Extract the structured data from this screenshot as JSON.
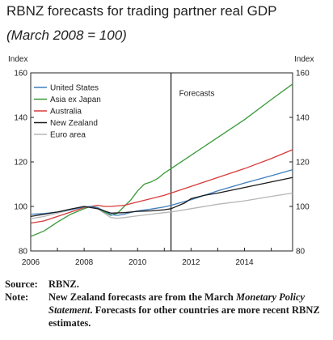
{
  "title": "RBNZ forecasts for trading partner real GDP",
  "subtitle": "(March 2008 = 100)",
  "chart_data": {
    "type": "line",
    "ylabel_left": "Index",
    "ylabel_right": "Index",
    "xlim": [
      2006,
      2015.8
    ],
    "ylim": [
      80,
      160
    ],
    "x_ticks": [
      2006,
      2008,
      2010,
      2012,
      2014
    ],
    "y_ticks": [
      80,
      100,
      120,
      140,
      160
    ],
    "annotation": {
      "text": "Forecasts",
      "x": 2011.25
    },
    "legend_position": "top-left",
    "series": [
      {
        "name": "United States",
        "color": "#3f7fbf",
        "points": [
          [
            2006,
            96.5
          ],
          [
            2006.5,
            96.8
          ],
          [
            2007,
            97.5
          ],
          [
            2007.5,
            98.5
          ],
          [
            2008,
            99.8
          ],
          [
            2008.25,
            100
          ],
          [
            2008.5,
            99.5
          ],
          [
            2008.75,
            98
          ],
          [
            2009,
            96.3
          ],
          [
            2009.25,
            96
          ],
          [
            2009.5,
            96.5
          ],
          [
            2009.75,
            97.3
          ],
          [
            2010,
            98
          ],
          [
            2010.5,
            98.8
          ],
          [
            2011,
            99.8
          ],
          [
            2011.25,
            100.5
          ],
          [
            2012,
            103
          ],
          [
            2013,
            107
          ],
          [
            2014,
            110.5
          ],
          [
            2015,
            113.8
          ],
          [
            2015.8,
            116.5
          ]
        ]
      },
      {
        "name": "Asia ex Japan",
        "color": "#3a9a3a",
        "points": [
          [
            2006,
            86.5
          ],
          [
            2006.5,
            89
          ],
          [
            2007,
            93
          ],
          [
            2007.5,
            96.5
          ],
          [
            2008,
            99
          ],
          [
            2008.25,
            100
          ],
          [
            2008.5,
            99.5
          ],
          [
            2008.75,
            97.5
          ],
          [
            2009,
            96
          ],
          [
            2009.25,
            97
          ],
          [
            2009.5,
            100
          ],
          [
            2009.75,
            103
          ],
          [
            2010,
            107
          ],
          [
            2010.25,
            110
          ],
          [
            2010.5,
            111
          ],
          [
            2010.75,
            112.5
          ],
          [
            2011,
            115
          ],
          [
            2011.25,
            117
          ],
          [
            2012,
            123
          ],
          [
            2013,
            131
          ],
          [
            2014,
            139
          ],
          [
            2015,
            148
          ],
          [
            2015.8,
            155
          ]
        ]
      },
      {
        "name": "Australia",
        "color": "#d83a3a",
        "points": [
          [
            2006,
            92.5
          ],
          [
            2006.5,
            93.5
          ],
          [
            2007,
            95.5
          ],
          [
            2007.5,
            97.5
          ],
          [
            2008,
            99.5
          ],
          [
            2008.5,
            100.5
          ],
          [
            2008.75,
            100
          ],
          [
            2009,
            100
          ],
          [
            2009.5,
            100.5
          ],
          [
            2010,
            102
          ],
          [
            2010.5,
            103.5
          ],
          [
            2011,
            105
          ],
          [
            2011.25,
            106
          ],
          [
            2012,
            109
          ],
          [
            2013,
            113
          ],
          [
            2014,
            117
          ],
          [
            2015,
            121.5
          ],
          [
            2015.8,
            125.5
          ]
        ]
      },
      {
        "name": "New Zealand",
        "color": "#1a1a1a",
        "points": [
          [
            2006,
            95.5
          ],
          [
            2006.5,
            96.5
          ],
          [
            2007,
            97.5
          ],
          [
            2007.5,
            98.8
          ],
          [
            2008,
            100
          ],
          [
            2008.5,
            99
          ],
          [
            2008.75,
            98
          ],
          [
            2009,
            97
          ],
          [
            2009.5,
            97.2
          ],
          [
            2010,
            97.8
          ],
          [
            2010.5,
            98
          ],
          [
            2011,
            98.5
          ],
          [
            2011.25,
            99
          ],
          [
            2011.75,
            101.5
          ],
          [
            2012,
            103.5
          ],
          [
            2012.5,
            105
          ],
          [
            2013,
            106
          ],
          [
            2014,
            108.5
          ],
          [
            2015,
            111
          ],
          [
            2015.8,
            113
          ]
        ]
      },
      {
        "name": "Euro area",
        "color": "#b5b5b5",
        "points": [
          [
            2006,
            94.5
          ],
          [
            2006.5,
            95.5
          ],
          [
            2007,
            97
          ],
          [
            2007.5,
            98.5
          ],
          [
            2008,
            99.7
          ],
          [
            2008.25,
            100
          ],
          [
            2008.5,
            99
          ],
          [
            2008.75,
            97
          ],
          [
            2009,
            95
          ],
          [
            2009.25,
            94.7
          ],
          [
            2009.5,
            95
          ],
          [
            2010,
            95.8
          ],
          [
            2010.5,
            96.5
          ],
          [
            2011,
            97.2
          ],
          [
            2011.25,
            97.5
          ],
          [
            2012,
            99
          ],
          [
            2013,
            101
          ],
          [
            2014,
            102.5
          ],
          [
            2015,
            104.5
          ],
          [
            2015.8,
            106
          ]
        ]
      }
    ]
  },
  "notes": {
    "source_key": "Source:",
    "source_text": "RBNZ.",
    "note_key": "Note:",
    "note_text_1": "New Zealand forecasts are from the March",
    "note_text_italic": "Monetary Policy Statement",
    "note_text_2": ". Forecasts for other countries are more recent RBNZ estimates."
  }
}
